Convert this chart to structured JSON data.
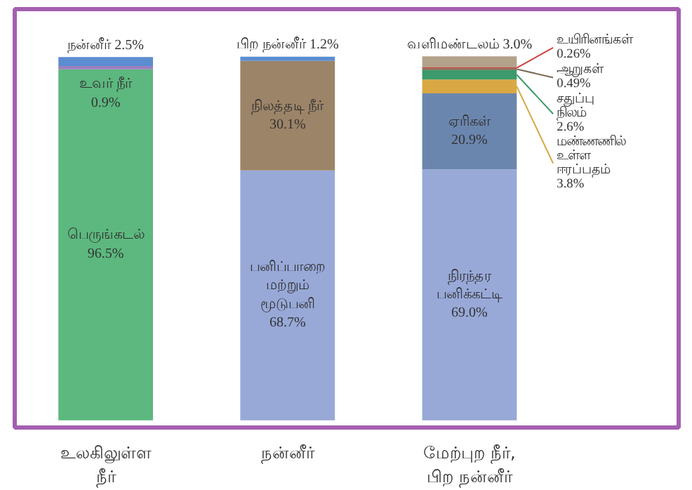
{
  "chart_data": {
    "type": "bar",
    "stacked": true,
    "categories": [
      "உலகிலுள்ள\nநீர்",
      "நன்னீர்",
      "மேற்புற நீர்,\nபிற நன்னீர்"
    ],
    "series": [
      {
        "name": "பெருங்கடல்",
        "color": "#5cb87e",
        "values": [
          96.5,
          null,
          null
        ],
        "value_labels": [
          "96.5%",
          null,
          null
        ]
      },
      {
        "name": "உவர் நீர்",
        "color": "#9b7fbf",
        "values": [
          0.9,
          null,
          null
        ],
        "value_labels": [
          "0.9%",
          null,
          null
        ]
      },
      {
        "name": "நன்னீர்",
        "color": "#5b8dd0",
        "values": [
          2.5,
          null,
          null
        ],
        "value_labels": [
          "2.5%",
          null,
          null
        ]
      },
      {
        "name": "பனிப்பாறை\nமற்றும்\nமூடுபனி",
        "color": "#98a9d8",
        "values": [
          null,
          68.7,
          null
        ],
        "value_labels": [
          null,
          "68.7%",
          null
        ]
      },
      {
        "name": "நிலத்தடி நீர்",
        "color": "#9c8468",
        "values": [
          null,
          30.1,
          null
        ],
        "value_labels": [
          null,
          "30.1%",
          null
        ]
      },
      {
        "name": "பிற நன்னீர்",
        "color": "#5b8dd0",
        "values": [
          null,
          1.2,
          null
        ],
        "value_labels": [
          null,
          "1.2%",
          null
        ]
      },
      {
        "name": "நிரந்தர\nபனிக்கட்டி",
        "color": "#98a9d8",
        "values": [
          null,
          null,
          69.0
        ],
        "value_labels": [
          null,
          null,
          "69.0%"
        ]
      },
      {
        "name": "ஏரிகள்",
        "color": "#6b86ae",
        "values": [
          null,
          null,
          20.9
        ],
        "value_labels": [
          null,
          null,
          "20.9%"
        ]
      },
      {
        "name": "மண்ணணில்\nஉள்ள\nஈரப்பதம்",
        "color": "#d9a844",
        "values": [
          null,
          null,
          3.8
        ],
        "value_labels": [
          null,
          null,
          "3.8%"
        ]
      },
      {
        "name": "சதுப்பு\nநிலம்",
        "color": "#3c9a6c",
        "values": [
          null,
          null,
          2.6
        ],
        "value_labels": [
          null,
          null,
          "2.6%"
        ]
      },
      {
        "name": "ஆறுகள்",
        "color": "#7a6a50",
        "values": [
          null,
          null,
          0.49
        ],
        "value_labels": [
          null,
          null,
          "0.49%"
        ]
      },
      {
        "name": "உயிரினங்கள்",
        "color": "#d04040",
        "values": [
          null,
          null,
          0.26
        ],
        "value_labels": [
          null,
          null,
          "0.26%"
        ]
      },
      {
        "name": "வளிமண்டலம்",
        "color": "#b3a28a",
        "values": [
          null,
          null,
          3.0
        ],
        "value_labels": [
          null,
          null,
          "3.0%"
        ]
      }
    ]
  }
}
